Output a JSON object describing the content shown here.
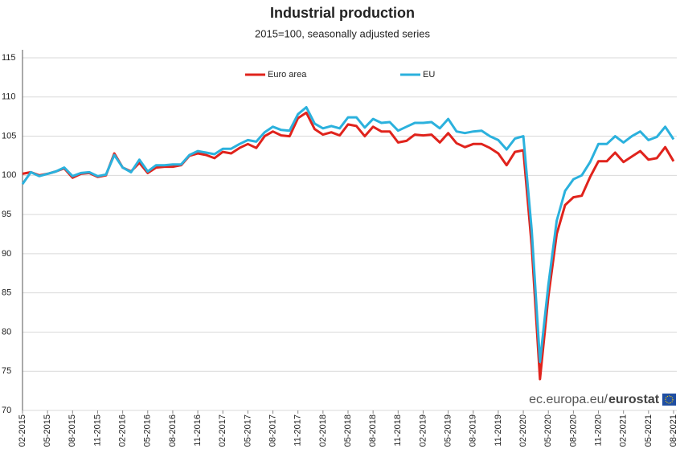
{
  "chart_data": {
    "type": "line",
    "title": "Industrial production",
    "subtitle": "2015=100, seasonally adjusted series",
    "source": [
      "ec.europa.eu/",
      "eurostat"
    ],
    "categories": [
      "02-2015",
      null,
      null,
      "05-2015",
      null,
      null,
      "08-2015",
      null,
      null,
      "11-2015",
      null,
      null,
      "02-2016",
      null,
      null,
      "05-2016",
      null,
      null,
      "08-2016",
      null,
      null,
      "11-2016",
      null,
      null,
      "02-2017",
      null,
      null,
      "05-2017",
      null,
      null,
      "08-2017",
      null,
      null,
      "11-2017",
      null,
      null,
      "02-2018",
      null,
      null,
      "05-2018",
      null,
      null,
      "08-2018",
      null,
      null,
      "11-2018",
      null,
      null,
      "02-2019",
      null,
      null,
      "05-2019",
      null,
      null,
      "08-2019",
      null,
      null,
      "11-2019",
      null,
      null,
      "02-2020",
      null,
      null,
      "05-2020",
      null,
      null,
      "08-2020",
      null,
      null,
      "11-2020",
      null,
      null,
      "02-2021",
      null,
      null,
      "05-2021",
      null,
      null,
      "08-2021"
    ],
    "series": [
      {
        "name": "Euro area",
        "color": "#e0231c",
        "values": [
          100.2,
          100.4,
          100.0,
          100.2,
          100.5,
          100.9,
          99.7,
          100.2,
          100.3,
          99.8,
          100.0,
          102.8,
          101.0,
          100.5,
          101.6,
          100.3,
          101.0,
          101.1,
          101.1,
          101.3,
          102.5,
          102.8,
          102.6,
          102.2,
          103.0,
          102.8,
          103.5,
          104.0,
          103.5,
          105.0,
          105.6,
          105.1,
          105.0,
          107.3,
          108.0,
          105.9,
          105.2,
          105.5,
          105.1,
          106.5,
          106.3,
          105.0,
          106.2,
          105.6,
          105.6,
          104.2,
          104.4,
          105.2,
          105.1,
          105.2,
          104.2,
          105.4,
          104.1,
          103.6,
          104.0,
          104.0,
          103.5,
          102.8,
          101.3,
          103.0,
          103.2,
          91.0,
          74.0,
          84.5,
          92.5,
          96.2,
          97.2,
          97.4,
          99.8,
          101.8,
          101.8,
          102.9,
          101.7,
          102.4,
          103.1,
          102.0,
          102.2,
          103.6,
          101.8
        ]
      },
      {
        "name": "EU",
        "color": "#2bb1dd",
        "values": [
          98.9,
          100.4,
          99.9,
          100.2,
          100.5,
          101.0,
          99.9,
          100.3,
          100.4,
          99.9,
          100.1,
          102.6,
          101.0,
          100.4,
          102.0,
          100.5,
          101.3,
          101.3,
          101.4,
          101.4,
          102.6,
          103.1,
          102.9,
          102.7,
          103.4,
          103.4,
          104.0,
          104.5,
          104.3,
          105.5,
          106.2,
          105.8,
          105.7,
          107.8,
          108.7,
          106.6,
          106.0,
          106.3,
          106.0,
          107.4,
          107.4,
          106.1,
          107.2,
          106.7,
          106.8,
          105.7,
          106.2,
          106.7,
          106.7,
          106.8,
          106.0,
          107.2,
          105.6,
          105.4,
          105.6,
          105.7,
          105.0,
          104.5,
          103.3,
          104.7,
          105.0,
          93.0,
          76.2,
          86.0,
          94.2,
          98.0,
          99.5,
          100.0,
          101.7,
          104.0,
          104.0,
          105.0,
          104.2,
          105.0,
          105.6,
          104.5,
          104.9,
          106.2,
          104.6
        ]
      }
    ],
    "ylim": [
      70,
      115
    ],
    "yticks": [
      70,
      75,
      80,
      85,
      90,
      95,
      100,
      105,
      110,
      115
    ],
    "grid": true
  }
}
